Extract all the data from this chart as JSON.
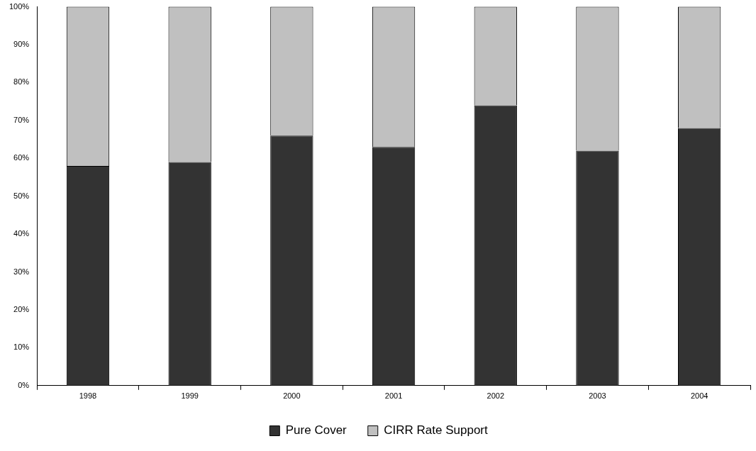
{
  "chart_data": {
    "type": "bar",
    "stacked": true,
    "categories": [
      "1998",
      "1999",
      "2000",
      "2001",
      "2002",
      "2003",
      "2004"
    ],
    "series": [
      {
        "name": "Pure Cover",
        "color": "#333333",
        "values": [
          58,
          59,
          66,
          63,
          74,
          62,
          68
        ]
      },
      {
        "name": "CIRR Rate Support",
        "color": "#c0c0c0",
        "values": [
          42,
          41,
          34,
          37,
          26,
          38,
          32
        ]
      }
    ],
    "ylim": [
      0,
      100
    ],
    "yticks": [
      {
        "value": 0,
        "label": "0%"
      },
      {
        "value": 10,
        "label": "10%"
      },
      {
        "value": 20,
        "label": "20%"
      },
      {
        "value": 30,
        "label": "30%"
      },
      {
        "value": 40,
        "label": "40%"
      },
      {
        "value": 50,
        "label": "50%"
      },
      {
        "value": 60,
        "label": "60%"
      },
      {
        "value": 70,
        "label": "70%"
      },
      {
        "value": 80,
        "label": "80%"
      },
      {
        "value": 90,
        "label": "90%"
      },
      {
        "value": 100,
        "label": "100%"
      }
    ],
    "grid": false,
    "legend": "bottom"
  }
}
